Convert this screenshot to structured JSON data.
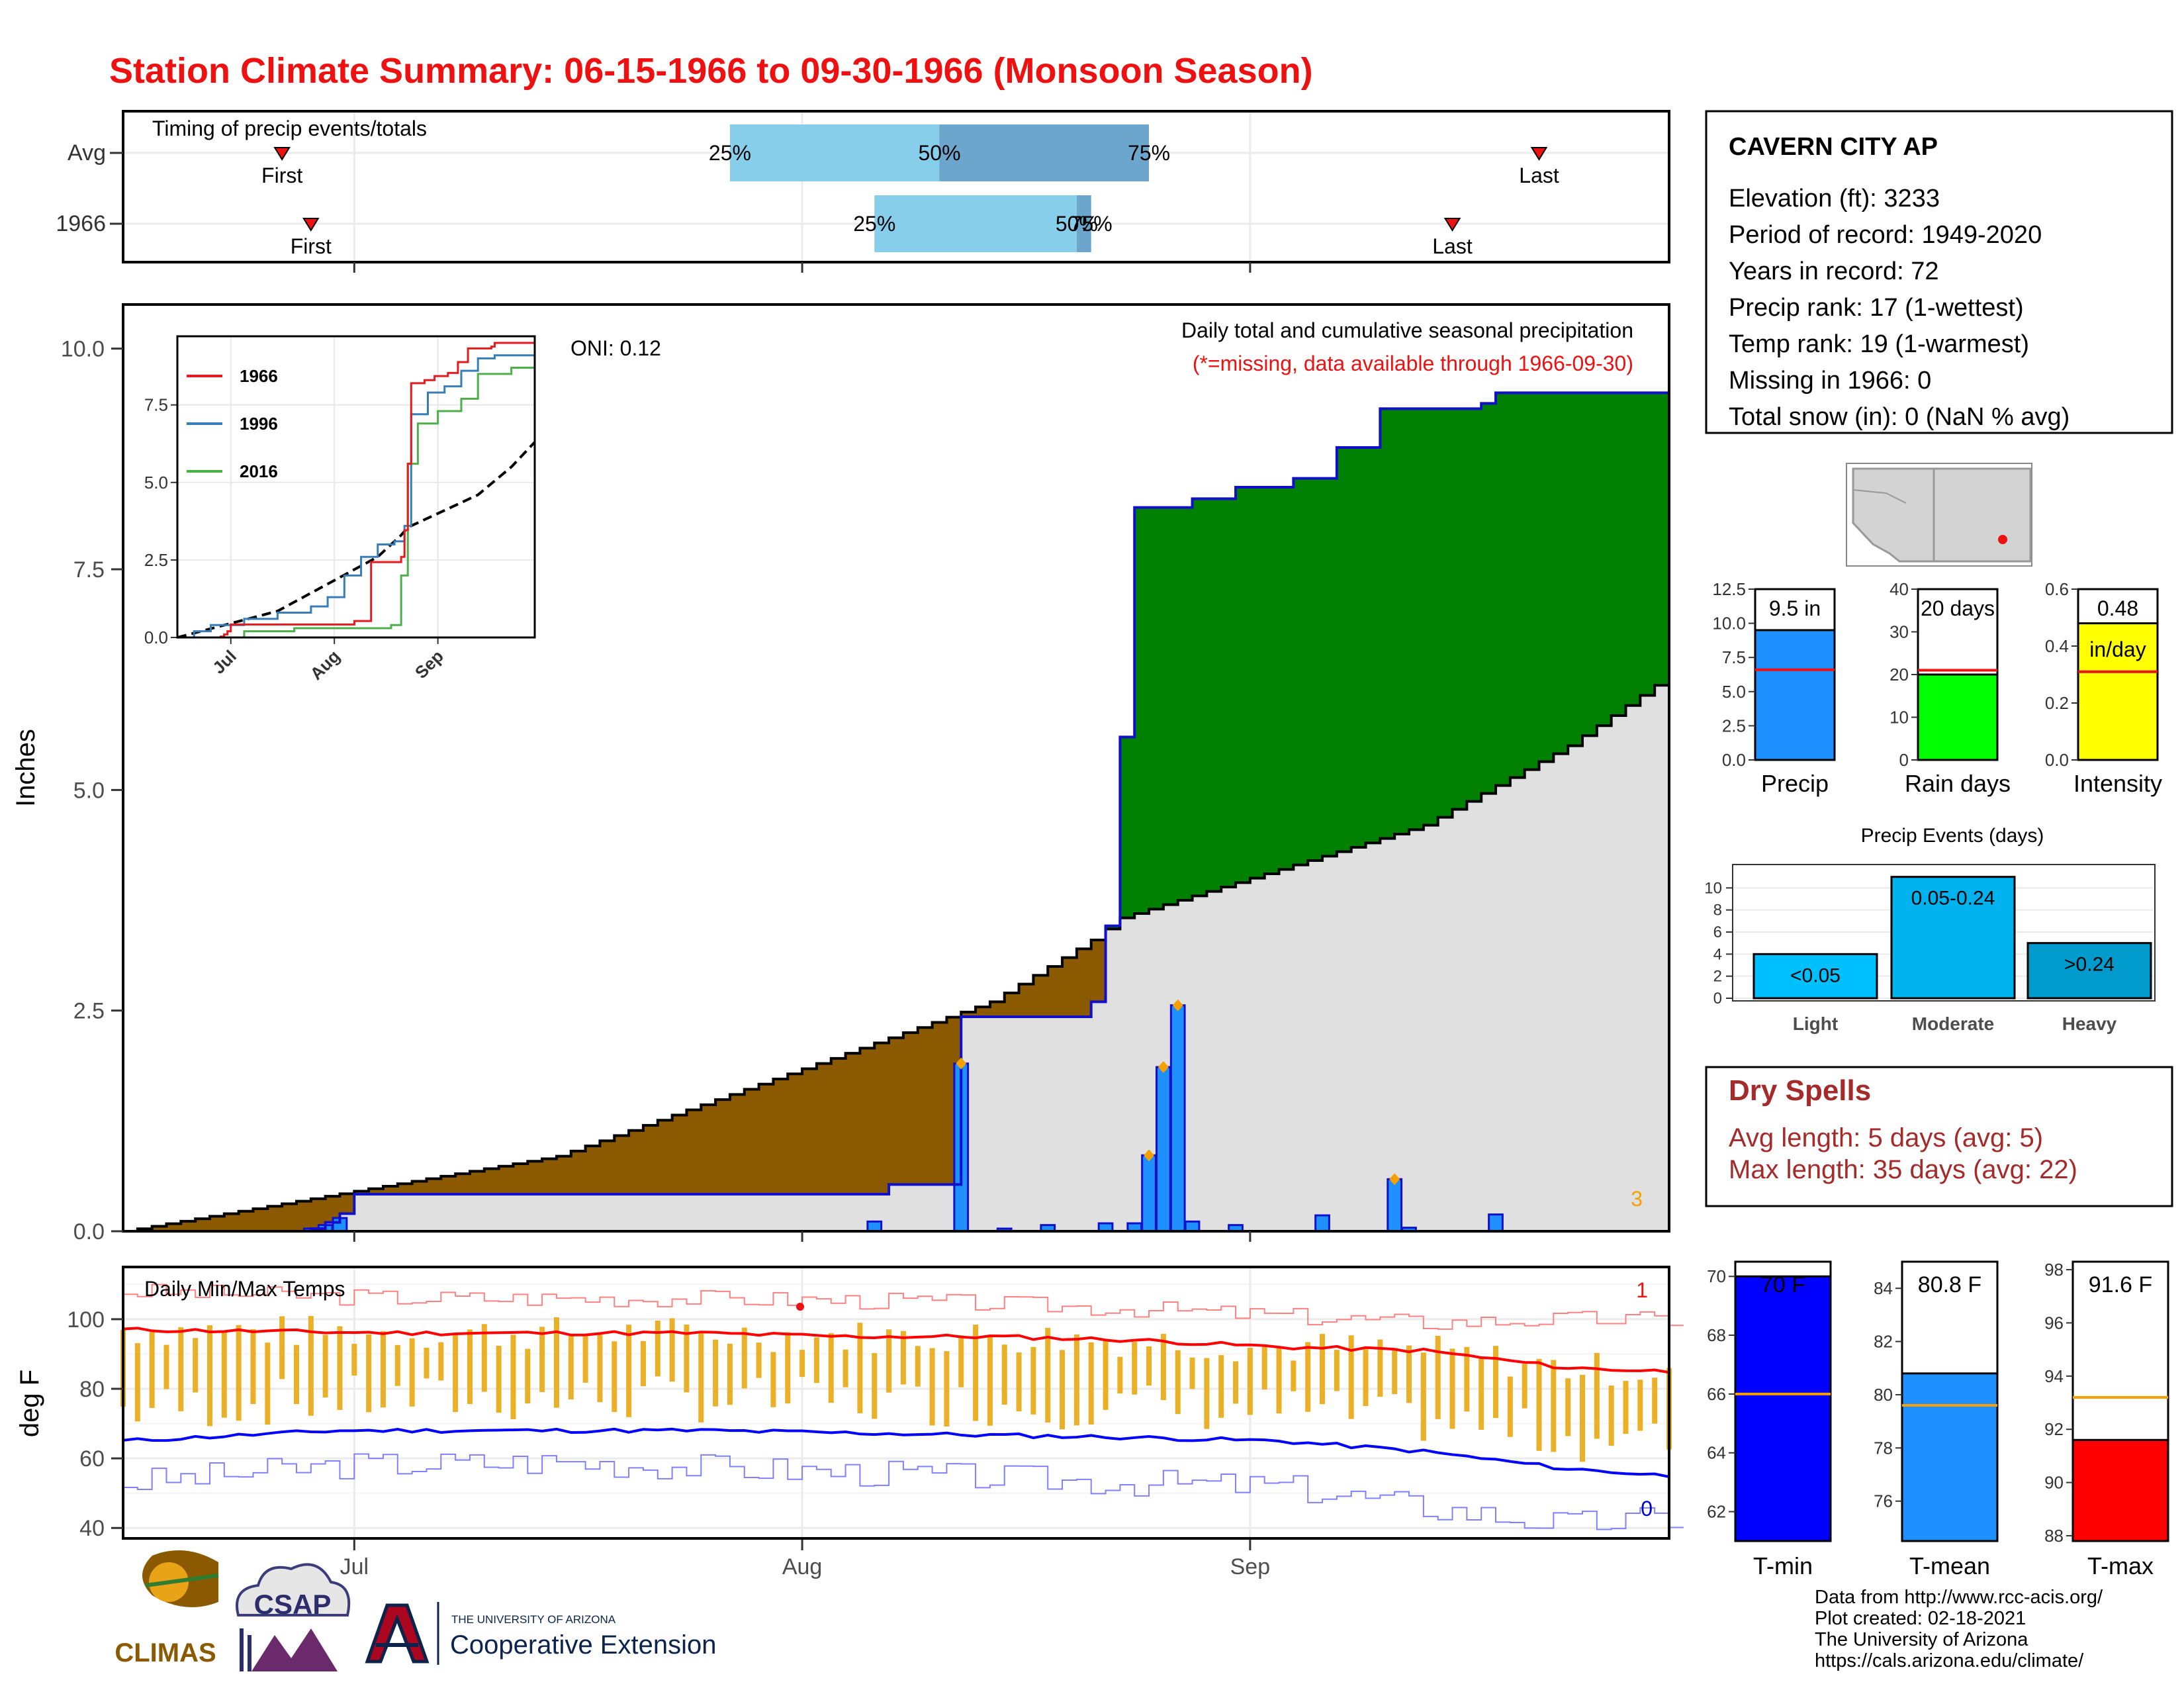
{
  "title": "Station Climate Summary: 06-15-1966 to 09-30-1966 (Monsoon Season)",
  "colors": {
    "title_red": "#ee1111",
    "avg_fill": "#8b5a00",
    "above_fill": "#008000",
    "normal_grey": "#e0e0e0",
    "cum_line": "#1010cc",
    "bar_blue": "#1e90ff",
    "orange": "#f5a000",
    "tmax_red": "#ff0000",
    "tmin_blue": "#0000ff",
    "light_blue": "#87ceeb",
    "mid_blue": "#6ca6cd",
    "dry_red": "#a52a2a"
  },
  "timing": {
    "label": "Timing of precip events/totals",
    "rows": [
      {
        "name": "Avg",
        "first_label": "First",
        "last_label": "Last",
        "first_day": 11,
        "last_day": 98,
        "q25_day": 42,
        "q50_day": 56.5,
        "q75_day": 71,
        "q25_label": "25%",
        "q50_label": "50%",
        "q75_label": "75%"
      },
      {
        "name": "1966",
        "first_label": "First",
        "last_label": "Last",
        "first_day": 13,
        "last_day": 92,
        "q25_day": 52,
        "q50_day": 66,
        "q75_day": 67,
        "q25_label": "25%",
        "q50_label": "50%",
        "q75_label": "75%"
      }
    ]
  },
  "main": {
    "ylabel": "Inches",
    "oni": "ONI: 0.12",
    "heading": "Daily total and cumulative seasonal precipitation",
    "missing_note": "(*=missing, data available through 1966-09-30)",
    "corner_count": "3",
    "yticks": [
      "0.0",
      "2.5",
      "5.0",
      "7.5",
      "10.0"
    ],
    "ylim": [
      0,
      10.5
    ]
  },
  "inset": {
    "legend": [
      {
        "name": "1966",
        "color": "#e41a1c"
      },
      {
        "name": "1996",
        "color": "#377eb8"
      },
      {
        "name": "2016",
        "color": "#4daf4a"
      }
    ],
    "yticks": [
      "0.0",
      "2.5",
      "5.0",
      "7.5"
    ],
    "xticks": [
      "Jul",
      "Aug",
      "Sep"
    ]
  },
  "temps": {
    "label": "Daily Min/Max Temps",
    "ylabel": "deg F",
    "yticks": [
      "40",
      "60",
      "80",
      "100"
    ],
    "record_high_count": "1",
    "record_low_count": "0"
  },
  "xaxis": {
    "ticks": [
      "Jul",
      "Aug",
      "Sep"
    ]
  },
  "station": {
    "name": "CAVERN CITY AP",
    "lines": [
      "Elevation (ft): 3233",
      "Period of record: 1949-2020",
      "Years in record: 72",
      "Precip rank: 17 (1-wettest)",
      "Temp rank: 19 (1-warmest)",
      "Missing in 1966: 0",
      "Total snow (in): 0 (NaN % avg)"
    ]
  },
  "summary_bars": [
    {
      "label": "Precip",
      "value": 9.5,
      "avg": 6.6,
      "display": "9.5 in",
      "ymax": 12.5,
      "yticks": [
        "0.0",
        "2.5",
        "5.0",
        "7.5",
        "10.0",
        "12.5"
      ],
      "tickvals": [
        0,
        2.5,
        5,
        7.5,
        10,
        12.5
      ],
      "color": "#1e90ff"
    },
    {
      "label": "Rain days",
      "value": 20,
      "avg": 21,
      "display": "20 days",
      "ymax": 40,
      "yticks": [
        "0",
        "10",
        "20",
        "30",
        "40"
      ],
      "tickvals": [
        0,
        10,
        20,
        30,
        40
      ],
      "color": "#00ff00"
    },
    {
      "label": "Intensity",
      "value": 0.48,
      "avg": 0.31,
      "display": "0.48",
      "unit": "in/day",
      "ymax": 0.6,
      "yticks": [
        "0.0",
        "0.2",
        "0.4",
        "0.6"
      ],
      "tickvals": [
        0,
        0.2,
        0.4,
        0.6
      ],
      "color": "#ffff00"
    }
  ],
  "events": {
    "title": "Precip Events (days)",
    "yticks": [
      "0",
      "2",
      "4",
      "6",
      "8",
      "10"
    ],
    "bars": [
      {
        "label": "Light",
        "range": "<0.05",
        "value": 4,
        "color": "#00bfff"
      },
      {
        "label": "Moderate",
        "range": "0.05-0.24",
        "value": 11,
        "color": "#00b2ee"
      },
      {
        "label": "Heavy",
        "range": ">0.24",
        "value": 5,
        "color": "#009acd"
      }
    ]
  },
  "dry_spells": {
    "title": "Dry Spells",
    "avg_line": "Avg length: 5 days (avg: 5)",
    "max_line": "Max length: 35 days (avg: 22)"
  },
  "temp_bars": [
    {
      "label": "T-min",
      "value": 70,
      "avg": 66,
      "display": "70 F",
      "ymin": 61,
      "ymax": 70.5,
      "yticks": [
        "62",
        "64",
        "66",
        "68",
        "70"
      ],
      "tickvals": [
        62,
        64,
        66,
        68,
        70
      ],
      "color": "#0000ff"
    },
    {
      "label": "T-mean",
      "value": 80.8,
      "avg": 79.6,
      "display": "80.8 F",
      "ymin": 74.5,
      "ymax": 85,
      "yticks": [
        "76",
        "78",
        "80",
        "82",
        "84"
      ],
      "tickvals": [
        76,
        78,
        80,
        82,
        84
      ],
      "color": "#1e90ff"
    },
    {
      "label": "T-max",
      "value": 91.6,
      "avg": 93.2,
      "display": "91.6 F",
      "ymin": 87.8,
      "ymax": 98.3,
      "yticks": [
        "88",
        "90",
        "92",
        "94",
        "96",
        "98"
      ],
      "tickvals": [
        88,
        90,
        92,
        94,
        96,
        98
      ],
      "color": "#ff0000"
    }
  ],
  "footer": {
    "lines": [
      "Data from http://www.rcc-acis.org/",
      "Plot created: 02-18-2021",
      "The University of Arizona",
      "https://cals.arizona.edu/climate/"
    ],
    "climas": "CLIMAS",
    "csap": "CSAP",
    "ua_small": "THE UNIVERSITY OF ARIZONA",
    "ua_big": "Cooperative Extension"
  },
  "chart_data": [
    {
      "type": "area",
      "title": "Daily total and cumulative seasonal precipitation",
      "ylabel": "Inches",
      "ylim": [
        0,
        10.5
      ],
      "x_start": "1966-06-15",
      "x_end": "1966-09-30",
      "avg_cumulative": [
        [
          0,
          0
        ],
        [
          30,
          0.85
        ],
        [
          60,
          2.6
        ],
        [
          67,
          3.3
        ],
        [
          69,
          3.55
        ],
        [
          90,
          4.6
        ],
        [
          100,
          5.5
        ],
        [
          107,
          6.3
        ]
      ],
      "cum_1966": [
        [
          0,
          0
        ],
        [
          13,
          0.03
        ],
        [
          14,
          0.1
        ],
        [
          15,
          0.2
        ],
        [
          16,
          0.42
        ],
        [
          52,
          0.42
        ],
        [
          53,
          0.53
        ],
        [
          57,
          0.53
        ],
        [
          58,
          2.43
        ],
        [
          65,
          2.43
        ],
        [
          67,
          2.6
        ],
        [
          68,
          3.46
        ],
        [
          69,
          5.6
        ],
        [
          70,
          8.2
        ],
        [
          74,
          8.3
        ],
        [
          77,
          8.43
        ],
        [
          81,
          8.53
        ],
        [
          84,
          8.88
        ],
        [
          87,
          9.32
        ],
        [
          94,
          9.38
        ],
        [
          95,
          9.5
        ],
        [
          107,
          9.5
        ]
      ],
      "daily_precip": [
        [
          13,
          0.03
        ],
        [
          14,
          0.07
        ],
        [
          15,
          0.15
        ],
        [
          52,
          0.11
        ],
        [
          58,
          1.9
        ],
        [
          61,
          0.03
        ],
        [
          64,
          0.07
        ],
        [
          68,
          0.09
        ],
        [
          70,
          0.09
        ],
        [
          71,
          0.86
        ],
        [
          72,
          1.86
        ],
        [
          73,
          2.56
        ],
        [
          74,
          0.11
        ],
        [
          77,
          0.07
        ],
        [
          83,
          0.18
        ],
        [
          88,
          0.59
        ],
        [
          89,
          0.04
        ],
        [
          95,
          0.19
        ]
      ]
    },
    {
      "type": "line",
      "title": "Daily Min/Max Temps",
      "ylabel": "deg F",
      "ylim": [
        37,
        115
      ],
      "normal_max": [
        [
          0,
          97
        ],
        [
          20,
          96
        ],
        [
          40,
          96
        ],
        [
          50,
          95
        ],
        [
          60,
          95
        ],
        [
          70,
          94
        ],
        [
          75,
          93
        ],
        [
          80,
          92
        ],
        [
          90,
          91
        ],
        [
          100,
          86
        ],
        [
          107,
          85
        ]
      ],
      "normal_min": [
        [
          0,
          65
        ],
        [
          15,
          68
        ],
        [
          30,
          68
        ],
        [
          40,
          68
        ],
        [
          55,
          67
        ],
        [
          70,
          66
        ],
        [
          80,
          65
        ],
        [
          90,
          62
        ],
        [
          100,
          57
        ],
        [
          107,
          55
        ]
      ],
      "record_high": [
        [
          0,
          108
        ],
        [
          20,
          106
        ],
        [
          40,
          106
        ],
        [
          56,
          105
        ],
        [
          70,
          103
        ],
        [
          80,
          101
        ],
        [
          90,
          99
        ],
        [
          100,
          100
        ],
        [
          107,
          100
        ]
      ],
      "record_low": [
        [
          0,
          53
        ],
        [
          15,
          58
        ],
        [
          30,
          59
        ],
        [
          50,
          56
        ],
        [
          70,
          53
        ],
        [
          80,
          52
        ],
        [
          90,
          46
        ],
        [
          100,
          41
        ],
        [
          107,
          43
        ]
      ]
    }
  ]
}
